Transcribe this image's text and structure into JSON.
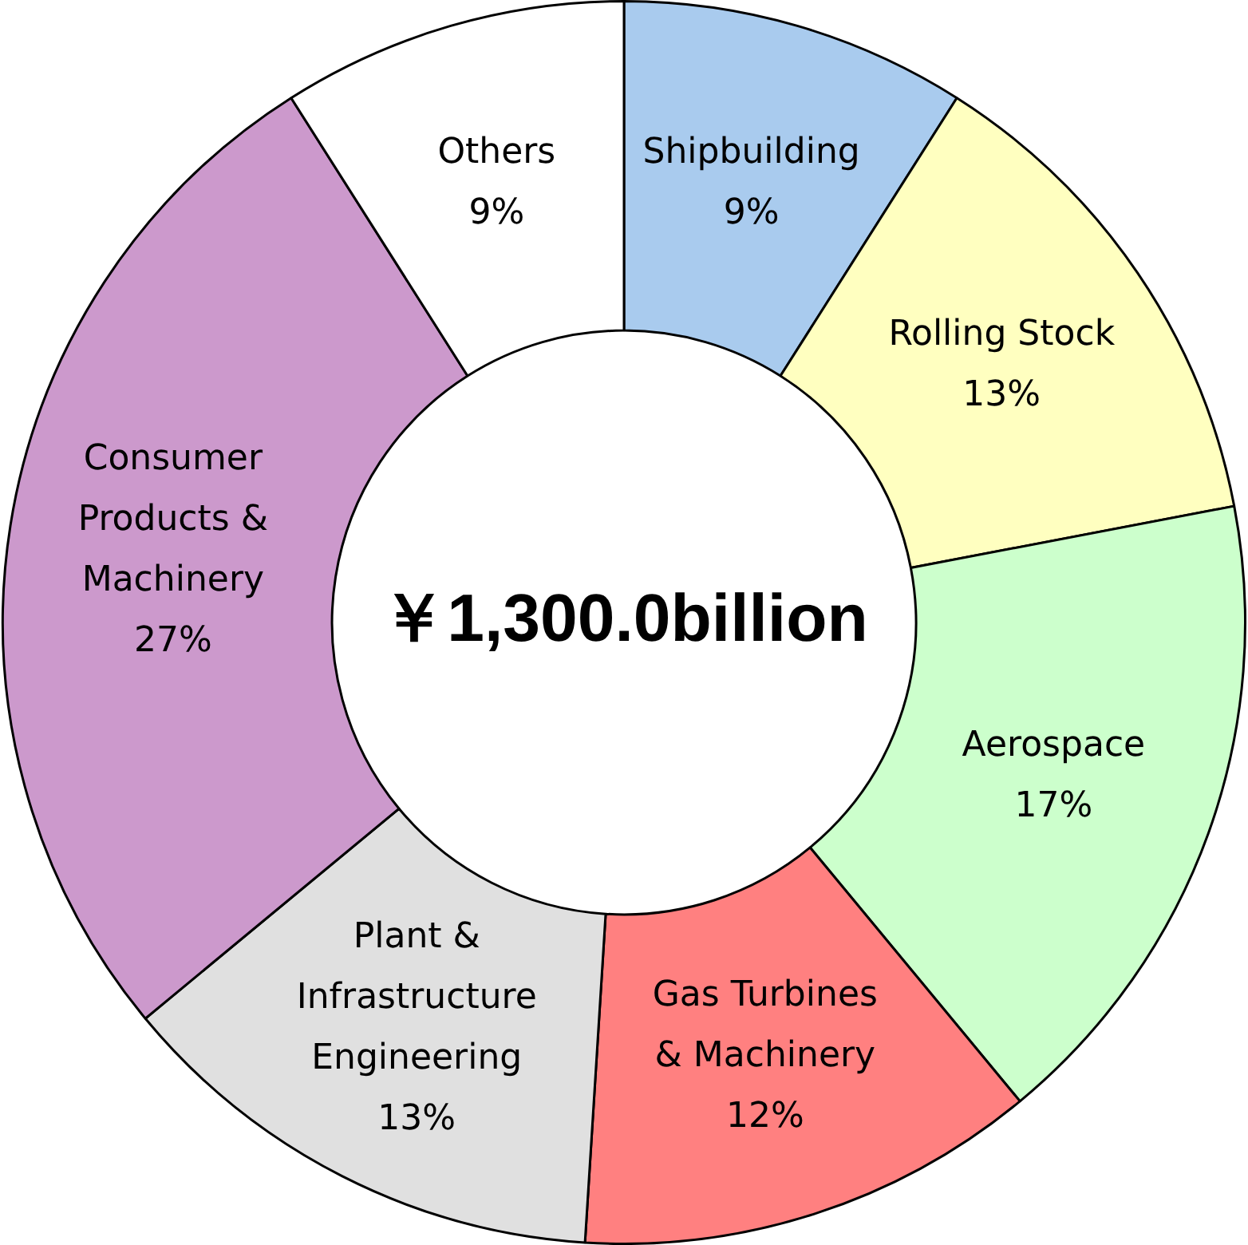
{
  "chart_data": {
    "type": "donut",
    "categories": [
      "Shipbuilding",
      "Rolling Stock",
      "Aerospace",
      "Gas Turbines & Machinery",
      "Plant & Infrastructure Engineering",
      "Consumer Products & Machinery",
      "Others"
    ],
    "values": [
      9,
      13,
      17,
      12,
      13,
      27,
      9
    ],
    "colors": [
      "#a9cbee",
      "#ffffc0",
      "#ccffcc",
      "#ff8080",
      "#e0e0e0",
      "#cc99cc",
      "#ffffff"
    ],
    "value_labels": [
      "9%",
      "13%",
      "17%",
      "12%",
      "13%",
      "27%",
      "9%"
    ],
    "annotations": [
      "￥1,300.0billion"
    ]
  }
}
